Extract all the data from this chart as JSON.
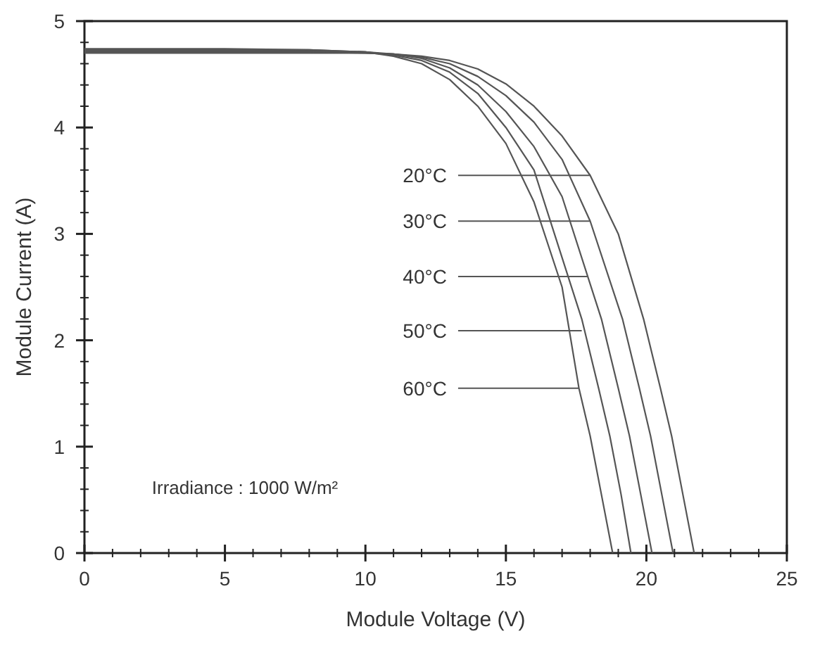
{
  "chart_data": {
    "type": "line",
    "xlabel": "Module Voltage (V)",
    "ylabel": "Module Current (A)",
    "xlim": [
      0,
      25
    ],
    "ylim": [
      0,
      5
    ],
    "xticks": [
      0,
      {
        "value": 1,
        "label": null
      },
      {
        "value": 2,
        "label": null
      },
      {
        "value": 3,
        "label": null
      },
      {
        "value": 4,
        "label": null
      },
      5,
      {
        "value": 6,
        "label": null
      },
      {
        "value": 7,
        "label": null
      },
      {
        "value": 8,
        "label": null
      },
      {
        "value": 9,
        "label": null
      },
      10,
      {
        "value": 11,
        "label": null
      },
      {
        "value": 12,
        "label": null
      },
      {
        "value": 13,
        "label": null
      },
      {
        "value": 14,
        "label": null
      },
      15,
      {
        "value": 16,
        "label": null
      },
      {
        "value": 17,
        "label": null
      },
      {
        "value": 18,
        "label": null
      },
      {
        "value": 19,
        "label": null
      },
      20,
      {
        "value": 21,
        "label": null
      },
      {
        "value": 22,
        "label": null
      },
      {
        "value": 23,
        "label": null
      },
      {
        "value": 24,
        "label": null
      },
      25
    ],
    "yticks": [
      0,
      {
        "value": 0.2,
        "label": null
      },
      {
        "value": 0.4,
        "label": null
      },
      {
        "value": 0.6,
        "label": null
      },
      {
        "value": 0.8,
        "label": null
      },
      1,
      {
        "value": 1.2,
        "label": null
      },
      {
        "value": 1.4,
        "label": null
      },
      {
        "value": 1.6,
        "label": null
      },
      {
        "value": 1.8,
        "label": null
      },
      2,
      {
        "value": 2.2,
        "label": null
      },
      {
        "value": 2.4,
        "label": null
      },
      {
        "value": 2.6,
        "label": null
      },
      {
        "value": 2.8,
        "label": null
      },
      3,
      {
        "value": 3.2,
        "label": null
      },
      {
        "value": 3.4,
        "label": null
      },
      {
        "value": 3.6,
        "label": null
      },
      {
        "value": 3.8,
        "label": null
      },
      4,
      {
        "value": 4.2,
        "label": null
      },
      {
        "value": 4.4,
        "label": null
      },
      {
        "value": 4.6,
        "label": null
      },
      {
        "value": 4.8,
        "label": null
      },
      5
    ],
    "grid": false,
    "marker": "none",
    "line_style": "solid",
    "series": [
      {
        "color": "#555555",
        "x": [
          0,
          5,
          8,
          10,
          11,
          12,
          13,
          14,
          15,
          16,
          17,
          18,
          19,
          19.9,
          20.5,
          20.9,
          21.3,
          21.7
        ],
        "values": [
          4.7,
          4.7,
          4.7,
          4.7,
          4.69,
          4.67,
          4.63,
          4.55,
          4.41,
          4.2,
          3.92,
          3.55,
          3.0,
          2.2,
          1.55,
          1.1,
          0.55,
          0
        ]
      },
      {
        "color": "#555555",
        "x": [
          0,
          5,
          8,
          10,
          11,
          12,
          13,
          14,
          15,
          16,
          17,
          18,
          19.15,
          19.75,
          20.15,
          20.55,
          20.95
        ],
        "values": [
          4.71,
          4.71,
          4.71,
          4.7,
          4.69,
          4.66,
          4.6,
          4.48,
          4.3,
          4.05,
          3.7,
          3.12,
          2.2,
          1.55,
          1.1,
          0.55,
          0
        ]
      },
      {
        "color": "#555555",
        "x": [
          0,
          5,
          8,
          10,
          11,
          12,
          13,
          14,
          15,
          16,
          17,
          18.4,
          19.0,
          19.4,
          19.8,
          20.2
        ],
        "values": [
          4.72,
          4.72,
          4.72,
          4.71,
          4.69,
          4.65,
          4.56,
          4.4,
          4.15,
          3.82,
          3.35,
          2.2,
          1.55,
          1.1,
          0.55,
          0
        ]
      },
      {
        "color": "#555555",
        "x": [
          0,
          5,
          8,
          10,
          11,
          12,
          13,
          14,
          15,
          16,
          17.7,
          18.3,
          18.7,
          19.1,
          19.45
        ],
        "values": [
          4.73,
          4.73,
          4.73,
          4.71,
          4.68,
          4.63,
          4.52,
          4.32,
          4.0,
          3.6,
          2.2,
          1.55,
          1.1,
          0.55,
          0
        ]
      },
      {
        "color": "#555555",
        "x": [
          0,
          5,
          8,
          10,
          11,
          12,
          13,
          14,
          15,
          16,
          17,
          17.6,
          18,
          18.4,
          18.8
        ],
        "values": [
          4.74,
          4.74,
          4.73,
          4.71,
          4.67,
          4.6,
          4.45,
          4.2,
          3.85,
          3.3,
          2.5,
          1.55,
          1.1,
          0.55,
          0
        ]
      }
    ],
    "annotations": [
      {
        "text": "20°C",
        "x": 18,
        "y": 3.55
      },
      {
        "text": "30°C",
        "x": 18,
        "y": 3.12
      },
      {
        "text": "40°C",
        "x": 17.9,
        "y": 2.6
      },
      {
        "text": "50°C",
        "x": 17.7,
        "y": 2.09
      },
      {
        "text": "60°C",
        "x": 17.6,
        "y": 1.55
      },
      "Irradiance : 1000 W/m²"
    ]
  }
}
